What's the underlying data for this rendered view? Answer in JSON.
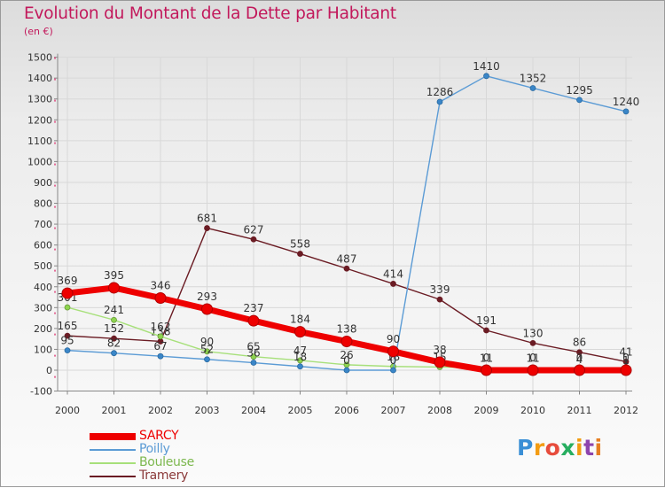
{
  "title": "Evolution du Montant de la Dette par Habitant",
  "unit": "(en €)",
  "logo": {
    "text": "Proxiti",
    "colors": [
      "#3a8fd6",
      "#f39c12",
      "#e74c3c",
      "#27ae60",
      "#f39c12",
      "#8e44ad",
      "#e67e22"
    ]
  },
  "chart_data": {
    "type": "line",
    "title": "Evolution du Montant de la Dette par Habitant",
    "subtitle": "(en €)",
    "xlabel": "",
    "ylabel": "",
    "x": [
      "2000",
      "2001",
      "2002",
      "2003",
      "2004",
      "2005",
      "2006",
      "2007",
      "2008",
      "2009",
      "2010",
      "2011",
      "2012"
    ],
    "ylim": [
      -100,
      1500
    ],
    "yticks": [
      "-100",
      "0",
      "100",
      "200",
      "300",
      "400",
      "500",
      "600",
      "700",
      "800",
      "900",
      "1000",
      "1100",
      "1200",
      "1300",
      "1400",
      "1500"
    ],
    "grid": true,
    "legend_position": "bottom-left",
    "series": [
      {
        "name": "Tramery",
        "color": "#6b1c24",
        "values": [
          165,
          152,
          138,
          681,
          627,
          558,
          487,
          414,
          339,
          191,
          130,
          86,
          41
        ],
        "labels": [
          "165",
          "152",
          "138",
          "681",
          "627",
          "558",
          "487",
          "414",
          "339",
          "191",
          "130",
          "86",
          "41"
        ]
      },
      {
        "name": "Bouleuse",
        "color": "#a7e07a",
        "values": [
          301,
          241,
          162,
          90,
          65,
          47,
          26,
          18,
          15,
          11,
          11,
          4,
          1
        ],
        "labels": [
          "301",
          "241",
          "162",
          "90",
          "65",
          "47",
          "26",
          "18",
          "15",
          "11",
          "11",
          "4",
          "1"
        ]
      },
      {
        "name": "Poilly",
        "color": "#5b9bd5",
        "values": [
          95,
          82,
          67,
          52,
          36,
          18,
          0,
          0,
          1286,
          1410,
          1352,
          1295,
          1240
        ],
        "labels": [
          "95",
          "82",
          "67",
          "52",
          "36",
          "18",
          "0",
          "0",
          "1286",
          "1410",
          "1352",
          "1295",
          "1240"
        ]
      },
      {
        "name": "SARCY",
        "color": "#ee0000",
        "values": [
          369,
          395,
          346,
          293,
          237,
          184,
          138,
          90,
          38,
          0,
          0,
          0,
          0
        ],
        "labels": [
          "369",
          "395",
          "346",
          "293",
          "237",
          "184",
          "138",
          "90",
          "38",
          "0",
          "0",
          "0",
          "0"
        ]
      }
    ],
    "legend": [
      {
        "name": "SARCY",
        "color": "#ee0000"
      },
      {
        "name": "Poilly",
        "color": "#5b9bd5"
      },
      {
        "name": "Bouleuse",
        "color": "#a7e07a"
      },
      {
        "name": "Tramery",
        "color": "#6b1c24"
      }
    ]
  }
}
